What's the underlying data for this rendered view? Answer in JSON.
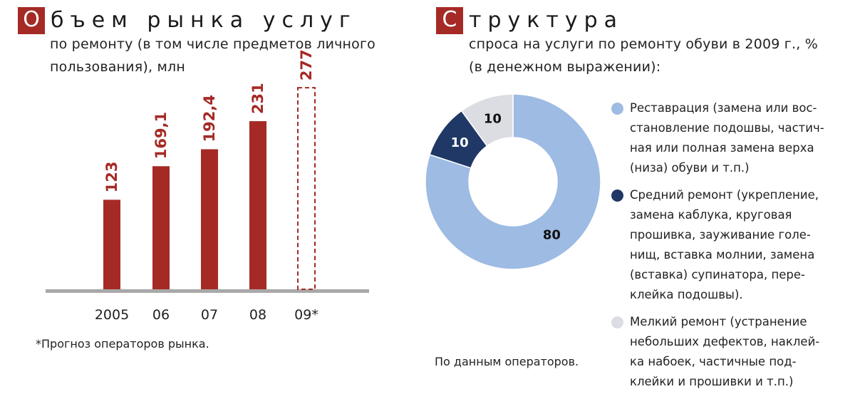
{
  "left": {
    "title_initial": "О",
    "title_rest": "бъем рынка услуг",
    "subtitle_line1": "по ремонту (в том числе предметов личного",
    "subtitle_line2": "пользования), млн",
    "footnote": "*Прогноз операторов рынка."
  },
  "right": {
    "title_initial": "С",
    "title_rest": "труктура",
    "subtitle_line1": "спроса на услуги по ремонту обуви в 2009 г., %",
    "subtitle_line2": "(в денежном выражении):",
    "source": "По данным операторов."
  },
  "chart_data": [
    {
      "type": "bar",
      "categories": [
        "2005",
        "06",
        "07",
        "08",
        "09*"
      ],
      "values": [
        123,
        169.1,
        192.4,
        231,
        277
      ],
      "labels": [
        "123",
        "169,1",
        "192,4",
        "231",
        "277"
      ],
      "forecast": [
        false,
        false,
        false,
        false,
        true
      ],
      "ylim": [
        0,
        280
      ],
      "bar_color": "#a52a25",
      "axis_color": "#a8a8a8"
    },
    {
      "type": "pie",
      "donut": true,
      "slices": [
        {
          "name": "Реставрация (замена или восстановление подошвы, частичная или полная замена верха (низа) обуви и т.п.)",
          "value": 80,
          "label": "80",
          "color": "#9dbbe3"
        },
        {
          "name": "Средний ремонт (укрепление, замена каблука, круговая прошивка, зауживание голенищ, вставка молнии, замена (вставка) супинатора, переклейка подошвы).",
          "value": 10,
          "label": "10",
          "color": "#1f3865"
        },
        {
          "name": "Мелкий ремонт (устранение небольших дефектов, наклейка набоек, частичные подклейки и прошивки и т.п.)",
          "value": 10,
          "label": "10",
          "color": "#dcdde2"
        }
      ],
      "legend": [
        {
          "lines": [
            "Реставрация (замена или вос-",
            "становление подошвы, частич-",
            "ная или полная замена верха",
            "(низа) обуви и т.п.)"
          ],
          "color": "#9dbbe3"
        },
        {
          "lines": [
            "Средний ремонт (укрепление,",
            "замена каблука, круговая",
            "прошивка, зауживание голе-",
            "нищ, вставка молнии, замена",
            "(вставка) супинатора, пере-",
            "клейка подошвы)."
          ],
          "color": "#1f3865"
        },
        {
          "lines": [
            "Мелкий ремонт (устранение",
            "небольших дефектов, наклей-",
            "ка набоек, частичные под-",
            "клейки и прошивки и т.п.)"
          ],
          "color": "#dcdde2"
        }
      ]
    }
  ]
}
